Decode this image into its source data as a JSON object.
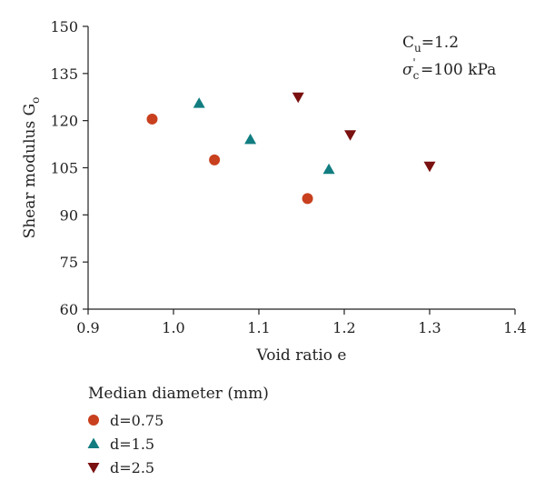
{
  "chart_data": {
    "type": "scatter",
    "xlabel": "Void ratio e",
    "ylabel_main": "Shear modulus G",
    "ylabel_sub": "o",
    "xlim": [
      0.9,
      1.4
    ],
    "ylim": [
      60,
      150
    ],
    "xticks": [
      "0.9",
      "1.0",
      "1.1",
      "1.2",
      "1.3",
      "1.4"
    ],
    "yticks": [
      "60",
      "75",
      "90",
      "105",
      "120",
      "135",
      "150"
    ],
    "grid": false,
    "legend_position": "bottom-left",
    "legend_title": "Median diameter (mm)",
    "annotations": {
      "line1_main": "C",
      "line1_sub": "u",
      "line1_rest": "=1.2",
      "line2_main": "σ",
      "line2_sub": "c",
      "line2_sup": "'",
      "line2_rest": " =100 kPa"
    },
    "series": [
      {
        "name": "d=0.75",
        "marker": "circle",
        "color": "#c8401e",
        "x": [
          0.975,
          1.048,
          1.157
        ],
        "y": [
          120.5,
          107.5,
          95.2
        ]
      },
      {
        "name": "d=1.5",
        "marker": "triangle-up",
        "color": "#117d80",
        "x": [
          1.03,
          1.09,
          1.182
        ],
        "y": [
          125.5,
          114.0,
          104.5
        ]
      },
      {
        "name": "d=2.5",
        "marker": "triangle-down",
        "color": "#7a1010",
        "x": [
          1.146,
          1.207,
          1.3
        ],
        "y": [
          127.5,
          115.5,
          105.5
        ]
      }
    ]
  }
}
